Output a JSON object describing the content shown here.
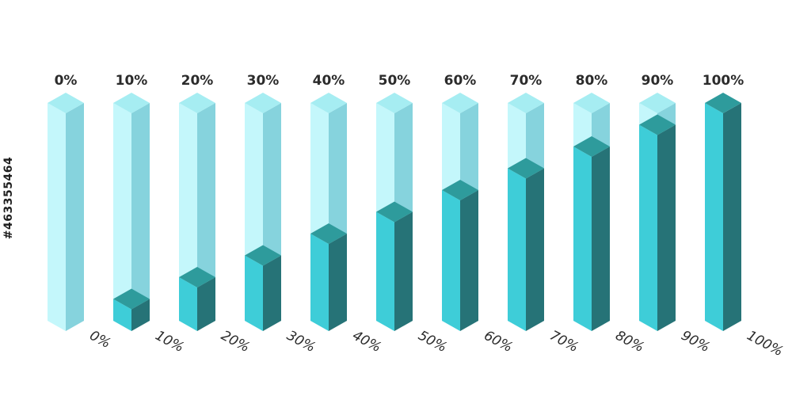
{
  "chart_data": {
    "type": "bar",
    "style": "isometric-3d-columns",
    "categories": [
      "0%",
      "10%",
      "20%",
      "30%",
      "40%",
      "50%",
      "60%",
      "70%",
      "80%",
      "90%",
      "100%"
    ],
    "values": [
      0,
      10,
      20,
      30,
      40,
      50,
      60,
      70,
      80,
      90,
      100
    ],
    "ylim": [
      0,
      100
    ],
    "bottom_labels": [
      "0%",
      "10%",
      "20%",
      "30%",
      "40%",
      "50%",
      "60%",
      "70%",
      "80%",
      "90%",
      "100%"
    ],
    "grid": false,
    "legend": "none"
  },
  "colors": {
    "filled_front": "#3ecdd8",
    "filled_side": "#267377",
    "filled_top": "#2e9b9c",
    "empty_front": "#c4f7fb",
    "empty_side": "#86d3dd",
    "empty_top": "#a6edf2"
  },
  "side_text": "#463355464"
}
